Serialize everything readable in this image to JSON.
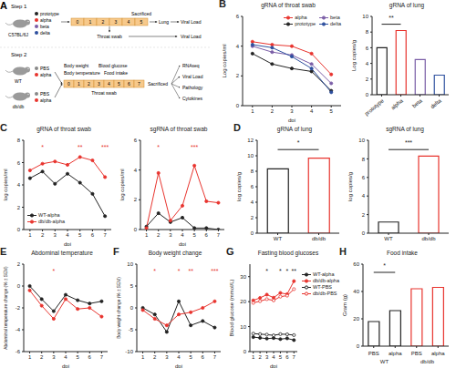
{
  "diagram": {
    "panel": "A",
    "step1": {
      "label": "Step 1",
      "mouse": "C57BL/6J",
      "groups": [
        {
          "name": "prototype",
          "color": "#222222"
        },
        {
          "name": "alpha",
          "color": "#e8342e"
        },
        {
          "name": "beta",
          "color": "#7b5ea7"
        },
        {
          "name": "delta",
          "color": "#2d4f9e"
        }
      ],
      "days": [
        0,
        1,
        2,
        3,
        4,
        5
      ],
      "end": "Sacrificed",
      "sample": "Lung",
      "swab": "Throat swab",
      "output": "Viral Load"
    },
    "step2": {
      "label": "Step 2",
      "mice": [
        {
          "name": "WT",
          "treatments": [
            "PBS",
            "alpha"
          ]
        },
        {
          "name": "db/db",
          "treatments": [
            "PBS",
            "alpha"
          ]
        }
      ],
      "colors": [
        "#888888",
        "#e8342e"
      ],
      "days": [
        0,
        1,
        2,
        3,
        4,
        5,
        6,
        7
      ],
      "measures": [
        "Body weight",
        "Blood glucose",
        "Body temperature",
        "Food intake"
      ],
      "swab": "Throat swab",
      "end": "Sacrificed",
      "outputs": [
        "RNAseq",
        "Viral Load",
        "Pathology",
        "Cytokines"
      ]
    }
  },
  "chart_data": [
    {
      "panel": "B",
      "type": "line",
      "title": "gRNA of throat swab",
      "x_label": "dpi",
      "y_label": "Log copies/ml",
      "x": [
        1,
        2,
        3,
        4,
        5
      ],
      "xlim": [
        0.5,
        5.5
      ],
      "xticks": [
        1,
        2,
        3,
        4,
        5
      ],
      "ylim": [
        0,
        6
      ],
      "yticks": [
        0,
        2,
        4,
        6
      ],
      "grid": false,
      "legend": "top right",
      "series": [
        {
          "name": "alpha",
          "color": "#e8342e",
          "marker": "circle",
          "values": [
            4.3,
            4.1,
            4.0,
            3.5,
            2.1
          ]
        },
        {
          "name": "beta",
          "color": "#7b5ea7",
          "marker": "circle",
          "values": [
            4.0,
            3.6,
            3.4,
            2.8,
            1.5
          ]
        },
        {
          "name": "prototype",
          "color": "#222222",
          "marker": "circle",
          "values": [
            3.5,
            2.8,
            2.5,
            2.3,
            1.0
          ]
        },
        {
          "name": "delta",
          "color": "#2d4f9e",
          "marker": "circle",
          "values": [
            4.1,
            3.9,
            3.3,
            2.5,
            0.9
          ]
        }
      ]
    },
    {
      "type": "bar",
      "title": "gRNA of lung",
      "y_label": "Log copies/g",
      "categories": [
        "prototype",
        "alpha",
        "beta",
        "delta"
      ],
      "values": [
        6.0,
        8.2,
        4.5,
        2.5
      ],
      "colors": [
        "#222222",
        "#e8342e",
        "#7b5ea7",
        "#2d4f9e"
      ],
      "ylim": [
        0,
        10
      ],
      "yticks": [
        0,
        2,
        4,
        6,
        8,
        10
      ],
      "grid": false,
      "annotations": [
        {
          "from": 0,
          "to": 1,
          "text": "**"
        }
      ]
    },
    {
      "panel": "C",
      "type": "line",
      "title": "gRNA of throat swab",
      "x_label": "dpi",
      "y_label": "log copies/ml",
      "x": [
        1,
        2,
        3,
        4,
        5,
        6,
        7
      ],
      "xlim": [
        0.5,
        7.5
      ],
      "xticks": [
        1,
        2,
        3,
        4,
        5,
        6,
        7
      ],
      "ylim": [
        0,
        8
      ],
      "yticks": [
        0,
        2,
        4,
        6,
        8
      ],
      "grid": false,
      "legend": "bottom left",
      "series": [
        {
          "name": "WT-alpha",
          "color": "#222222",
          "marker": "circle",
          "values": [
            4.6,
            5.2,
            4.1,
            5.0,
            4.2,
            3.2,
            1.2
          ]
        },
        {
          "name": "db/db-alpha",
          "color": "#e8342e",
          "marker": "circle",
          "values": [
            5.3,
            5.9,
            6.1,
            5.8,
            6.5,
            6.2,
            4.7
          ]
        }
      ],
      "annotations": [
        {
          "x": 2,
          "text": "*",
          "color": "#e8342e"
        },
        {
          "x": 5,
          "text": "**",
          "color": "#e8342e"
        },
        {
          "x": 7,
          "text": "***",
          "color": "#e8342e"
        }
      ]
    },
    {
      "type": "line",
      "title": "sgRNA of throat swab",
      "x_label": "dpi",
      "y_label": "log copies/ml",
      "x": [
        1,
        2,
        3,
        4,
        5,
        6,
        7
      ],
      "xlim": [
        0.5,
        7.5
      ],
      "xticks": [
        1,
        2,
        3,
        4,
        5,
        6,
        7
      ],
      "ylim": [
        0,
        6
      ],
      "yticks": [
        0,
        2,
        4,
        6
      ],
      "grid": false,
      "series": [
        {
          "color": "#222222",
          "marker": "circle",
          "values": [
            0.2,
            1.1,
            0.5,
            0.8,
            0.1,
            0.1,
            0.0
          ]
        },
        {
          "color": "#e8342e",
          "marker": "circle",
          "values": [
            0.1,
            3.8,
            0.6,
            1.6,
            4.3,
            1.9,
            1.8
          ]
        }
      ],
      "annotations": [
        {
          "x": 2,
          "text": "*",
          "color": "#e8342e"
        },
        {
          "x": 5,
          "text": "***",
          "color": "#e8342e"
        }
      ]
    },
    {
      "panel": "D",
      "type": "bar",
      "title": "gRNA of lung",
      "y_label": "log copies/g",
      "categories": [
        "WT",
        "db/db"
      ],
      "values": [
        8.3,
        9.7
      ],
      "colors": [
        "#222222",
        "#e8342e"
      ],
      "ylim": [
        0,
        12
      ],
      "yticks": [
        0,
        2,
        4,
        6,
        8,
        10,
        12
      ],
      "grid": false,
      "annotations": [
        {
          "from": 0,
          "to": 1,
          "text": "*"
        }
      ]
    },
    {
      "type": "bar",
      "title": "sgRNA of lung",
      "y_label": "log copies/g",
      "categories": [
        "WT",
        "db/db"
      ],
      "values": [
        1.2,
        8.3
      ],
      "colors": [
        "#222222",
        "#e8342e"
      ],
      "ylim": [
        0,
        10
      ],
      "yticks": [
        0,
        2,
        4,
        6,
        8,
        10
      ],
      "grid": false,
      "annotations": [
        {
          "from": 0,
          "to": 1,
          "text": "***"
        }
      ]
    },
    {
      "panel": "E",
      "type": "line",
      "title": "Abdominal temperature",
      "x_label": "dpi",
      "y_label": "Abdominal temperature change (% ± SEM)",
      "x": [
        1,
        2,
        3,
        4,
        5,
        6,
        7
      ],
      "xlim": [
        0.5,
        7.5
      ],
      "xticks": [
        1,
        2,
        3,
        4,
        5,
        6,
        7
      ],
      "ylim": [
        -6,
        2
      ],
      "yticks": [
        -6,
        -4,
        -2,
        0,
        2
      ],
      "grid": false,
      "series": [
        {
          "color": "#222222",
          "marker": "circle",
          "values": [
            0.0,
            -1.2,
            -2.3,
            -0.8,
            -1.3,
            -1.6,
            -1.4
          ]
        },
        {
          "color": "#e8342e",
          "marker": "circle",
          "values": [
            -0.4,
            -1.8,
            -3.0,
            -1.2,
            -2.1,
            -2.0,
            -2.8
          ]
        }
      ],
      "annotations": [
        {
          "x": 3,
          "text": "*",
          "color": "#e8342e"
        }
      ]
    },
    {
      "panel": "F",
      "type": "line",
      "title": "Body weight change",
      "x_label": "dpi",
      "y_label": "Body weight change (% ± SEM)",
      "x": [
        1,
        2,
        3,
        4,
        5,
        6,
        7
      ],
      "xlim": [
        0.5,
        7.5
      ],
      "xticks": [
        1,
        2,
        3,
        4,
        5,
        6,
        7
      ],
      "ylim": [
        -10,
        10
      ],
      "yticks": [
        -10,
        -5,
        0,
        5,
        10
      ],
      "grid": false,
      "series": [
        {
          "color": "#222222",
          "marker": "circle",
          "values": [
            0.0,
            -1.5,
            -5.5,
            1.5,
            -4.0,
            -3.0,
            -4.5
          ]
        },
        {
          "color": "#e8342e",
          "marker": "circle",
          "values": [
            -0.5,
            -2.5,
            -4.0,
            -1.5,
            -1.0,
            0.0,
            1.5
          ]
        }
      ],
      "annotations": [
        {
          "x": 2,
          "text": "*",
          "color": "#e8342e"
        },
        {
          "x": 4,
          "text": "*",
          "color": "#e8342e"
        },
        {
          "x": 5,
          "text": "**",
          "color": "#e8342e"
        },
        {
          "x": 7,
          "text": "***",
          "color": "#e8342e"
        }
      ]
    },
    {
      "panel": "G",
      "type": "line",
      "title": "Fasting blood glucoses",
      "x_label": "dpi",
      "y_label": "Blood glucose (mmol/L)",
      "x": [
        1,
        2,
        3,
        4,
        5,
        6,
        7
      ],
      "xlim": [
        0.5,
        7.5
      ],
      "xticks": [
        1,
        2,
        3,
        4,
        5,
        6,
        7
      ],
      "ylim": [
        0,
        35
      ],
      "yticks": [
        0,
        10,
        20,
        30
      ],
      "grid": false,
      "legend": "right",
      "series": [
        {
          "name": "WT-alpha",
          "color": "#222222",
          "marker": "circle",
          "values": [
            5.8,
            5.5,
            5.2,
            5.4,
            5.0,
            5.3,
            4.6
          ]
        },
        {
          "name": "db/db-alpha",
          "color": "#e8342e",
          "marker": "circle",
          "values": [
            20.5,
            21.5,
            22.8,
            21.6,
            23.5,
            23.0,
            28.2
          ]
        },
        {
          "name": "WT-PBS",
          "color": "#222222",
          "marker": "open_circle",
          "values": [
            7.2,
            7.0,
            6.8,
            6.5,
            7.0,
            6.9,
            6.6
          ]
        },
        {
          "name": "db/db-PBS",
          "color": "#e8342e",
          "marker": "open_circle",
          "values": [
            19.5,
            20.2,
            21.0,
            20.5,
            22.0,
            22.4,
            25.0
          ]
        }
      ],
      "annotations": [
        {
          "x": 3,
          "text": "*",
          "color": "#222222"
        },
        {
          "x": 5,
          "text": "*",
          "color": "#222222"
        },
        {
          "x": 6,
          "text": "*",
          "color": "#222222"
        },
        {
          "x": 7,
          "text": "**",
          "color": "#222222"
        }
      ]
    },
    {
      "panel": "H",
      "type": "bar",
      "title": "Food intake",
      "y_label": "Gram (g)",
      "categories": [
        "PBS",
        "alpha",
        "PBS",
        "alpha"
      ],
      "groups": [
        {
          "label": "WT",
          "span": [
            0,
            1
          ]
        },
        {
          "label": "db/db",
          "span": [
            2,
            3
          ]
        }
      ],
      "values": [
        18,
        26,
        42,
        43
      ],
      "colors": [
        "#222222",
        "#222222",
        "#e8342e",
        "#e8342e"
      ],
      "ylim": [
        0,
        60
      ],
      "yticks": [
        0,
        20,
        40,
        60
      ],
      "grid": false,
      "annotations": [
        {
          "from": 0,
          "to": 1,
          "text": "*"
        }
      ]
    }
  ]
}
